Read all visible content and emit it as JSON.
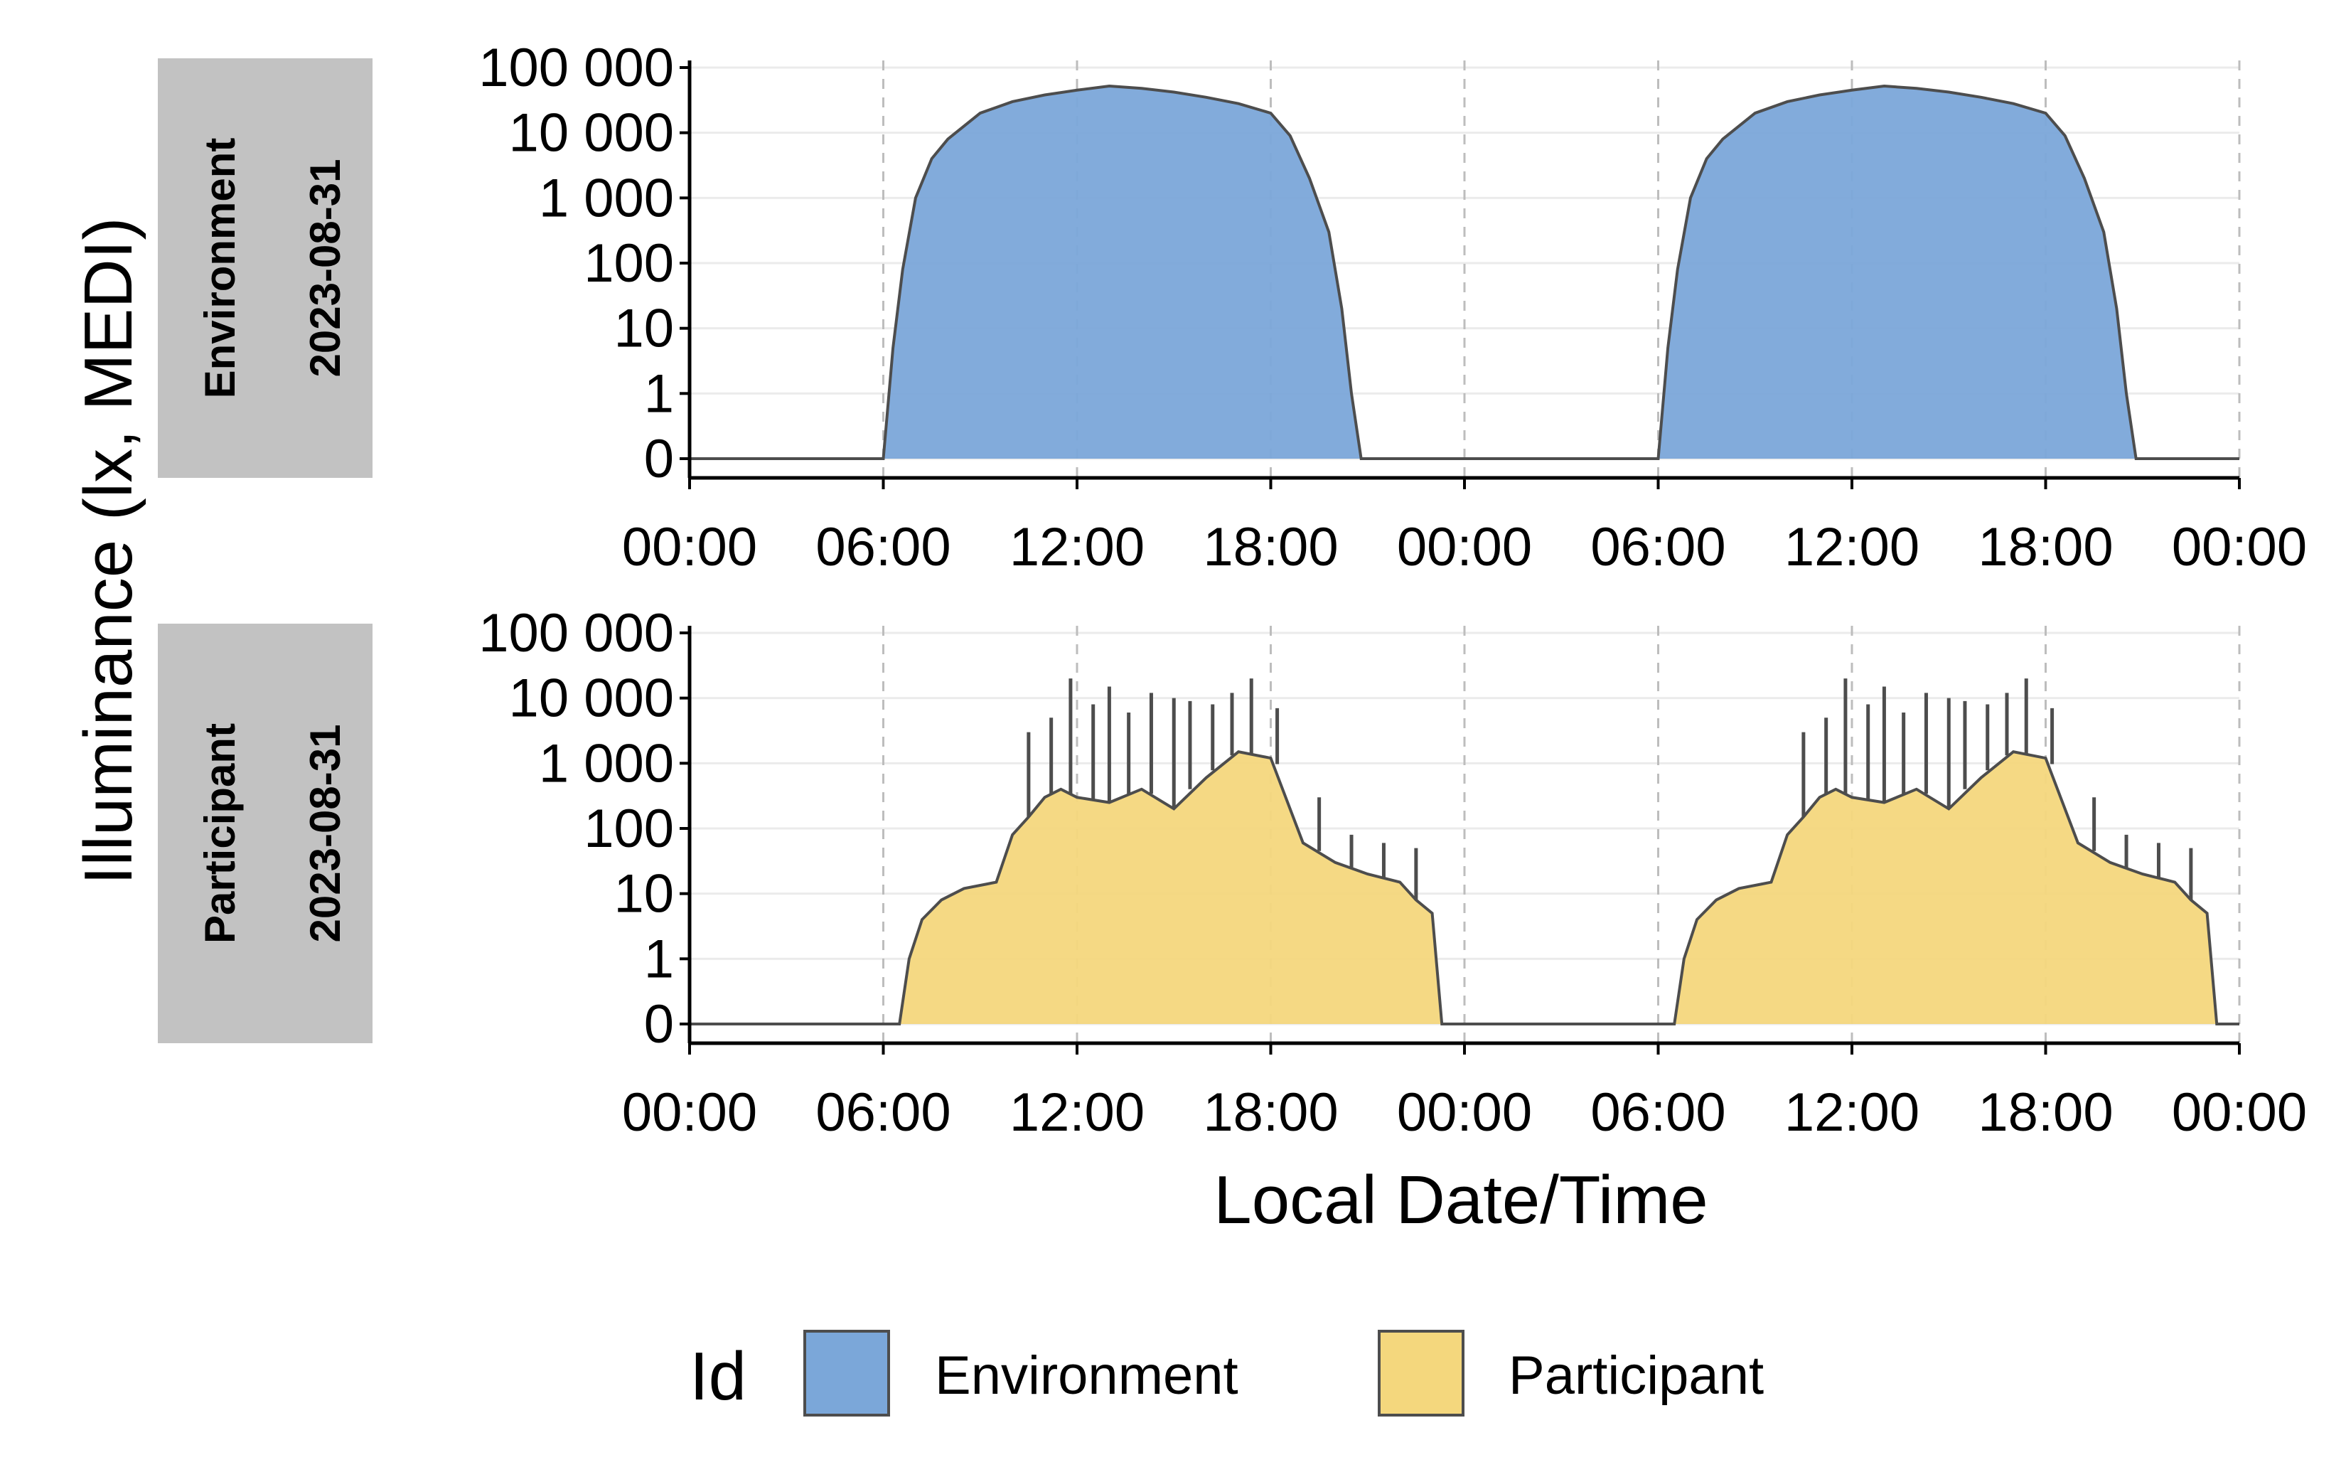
{
  "chart_data": {
    "type": "area",
    "ylabel": "Illuminance (lx, MEDI)",
    "xlabel": "Local Date/Time",
    "y_scale": "symlog",
    "y_ticks": [
      "0",
      "1",
      "10",
      "100",
      "1 000",
      "10 000",
      "100 000"
    ],
    "x_ticks": [
      "00:00",
      "06:00",
      "12:00",
      "18:00",
      "00:00",
      "06:00",
      "12:00",
      "18:00",
      "00:00"
    ],
    "x_range_hours": [
      0,
      48
    ],
    "legend": {
      "title": "Id",
      "position": "bottom",
      "items": [
        {
          "label": "Environment",
          "color": "#7BA7D9"
        },
        {
          "label": "Participant",
          "color": "#F4D77D"
        }
      ]
    },
    "panels": [
      {
        "strip": [
          "Environment",
          "2023-08-31"
        ],
        "fill": "#7BA7D9",
        "line": "#4D4D4D",
        "series": {
          "name": "Environment",
          "hours": [
            0,
            6.0,
            6.3,
            6.6,
            7.0,
            7.5,
            8.0,
            9.0,
            10.0,
            11.0,
            12.0,
            13.0,
            14.0,
            15.0,
            16.0,
            17.0,
            18.0,
            18.6,
            19.2,
            19.8,
            20.2,
            20.5,
            20.8,
            24.0,
            30.0,
            30.3,
            30.6,
            31.0,
            31.5,
            32.0,
            33.0,
            34.0,
            35.0,
            36.0,
            37.0,
            38.0,
            39.0,
            40.0,
            41.0,
            42.0,
            42.6,
            43.2,
            43.8,
            44.2,
            44.5,
            44.8,
            48.0
          ],
          "values": [
            0,
            0,
            5,
            80,
            1000,
            4000,
            8000,
            20000,
            30000,
            38000,
            45000,
            52000,
            48000,
            42000,
            35000,
            28000,
            20000,
            9000,
            2000,
            300,
            20,
            1,
            0,
            0,
            0,
            5,
            80,
            1000,
            4000,
            8000,
            20000,
            30000,
            38000,
            45000,
            52000,
            48000,
            42000,
            35000,
            28000,
            20000,
            9000,
            2000,
            300,
            20,
            1,
            0,
            0
          ]
        }
      },
      {
        "strip": [
          "Participant",
          "2023-08-31"
        ],
        "fill": "#F4D77D",
        "line": "#4D4D4D",
        "series": {
          "name": "Participant",
          "hours": [
            0,
            6.5,
            6.8,
            7.2,
            7.8,
            8.5,
            9.2,
            9.5,
            10.0,
            10.5,
            11.0,
            11.5,
            12.0,
            13.0,
            14.0,
            15.0,
            16.0,
            17.0,
            18.0,
            19.0,
            20.0,
            21.0,
            22.0,
            22.5,
            23.0,
            23.3,
            24.0,
            30.5,
            30.8,
            31.2,
            31.8,
            32.5,
            33.2,
            33.5,
            34.0,
            34.5,
            35.0,
            35.5,
            36.0,
            37.0,
            38.0,
            39.0,
            40.0,
            41.0,
            42.0,
            43.0,
            44.0,
            45.0,
            46.0,
            46.5,
            47.0,
            47.3,
            48.0
          ],
          "values": [
            0,
            0,
            1,
            4,
            8,
            12,
            14,
            15,
            80,
            150,
            300,
            400,
            300,
            250,
            400,
            200,
            600,
            1500,
            1200,
            60,
            30,
            20,
            15,
            8,
            5,
            0,
            0,
            0,
            1,
            4,
            8,
            12,
            14,
            15,
            80,
            150,
            300,
            400,
            300,
            250,
            400,
            200,
            600,
            1500,
            1200,
            60,
            30,
            20,
            15,
            8,
            5,
            0,
            0
          ],
          "peaks_hours": [
            10.5,
            11.2,
            11.8,
            12.5,
            13.0,
            13.6,
            14.3,
            15.0,
            15.5,
            16.2,
            16.8,
            17.4,
            18.2,
            19.5,
            20.5,
            21.5,
            22.5,
            34.5,
            35.2,
            35.8,
            36.5,
            37.0,
            37.6,
            38.3,
            39.0,
            39.5,
            40.2,
            40.8,
            41.4,
            42.2,
            43.5,
            44.5,
            45.5,
            46.5
          ],
          "peaks_values": [
            3000,
            5000,
            20000,
            8000,
            15000,
            6000,
            12000,
            10000,
            9000,
            8000,
            12000,
            20000,
            7000,
            300,
            80,
            60,
            50,
            3000,
            5000,
            20000,
            8000,
            15000,
            6000,
            12000,
            10000,
            9000,
            8000,
            12000,
            20000,
            7000,
            300,
            80,
            60,
            50
          ]
        }
      }
    ]
  }
}
